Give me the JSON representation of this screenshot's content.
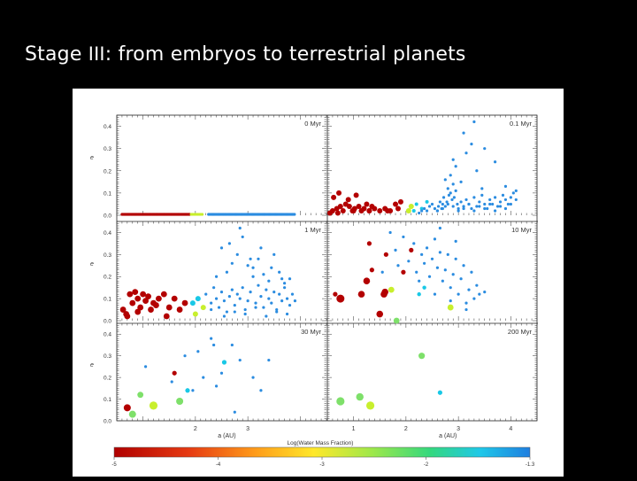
{
  "slide": {
    "title_pre": "Stage ",
    "title_roman": "III",
    "title_post": ": from embryos to terrestrial planets"
  },
  "chart_data": {
    "type": "scatter",
    "grid": false,
    "xlim": [
      0.5,
      4.5
    ],
    "ylim": [
      0.0,
      0.45
    ],
    "ytick_labels": [
      "0.0",
      "0.1",
      "0.2",
      "0.3",
      "0.4"
    ],
    "ytick_values": [
      0.0,
      0.1,
      0.2,
      0.3,
      0.4
    ],
    "xtick_labels": [
      "2",
      "3",
      "1",
      "2",
      "3",
      "4"
    ],
    "ylabel": "e",
    "xlabel_left": "a (AU)",
    "xlabel_right": "a (AU)",
    "colorbar_label": "Log(Water Mass Fraction)",
    "colorbar_ticks": [
      "-5",
      "-4",
      "-3",
      "-2",
      "-1.3"
    ],
    "colors": {
      "dry": "#b30000",
      "intermediate": "#c8ef2d",
      "light_green": "#7ee06a",
      "cyan": "#19c8e6",
      "wet": "#2b8ce0"
    },
    "panels": [
      {
        "label": "0 Myr",
        "row": 0,
        "col": 0,
        "series": [
          {
            "color": "dry",
            "kind": "line",
            "x_from": 0.6,
            "x_to": 1.9,
            "y": 0.0,
            "step": 0.015
          },
          {
            "color": "intermediate",
            "kind": "line",
            "x_from": 1.92,
            "x_to": 2.15,
            "y": 0.0,
            "step": 0.03
          },
          {
            "color": "wet",
            "kind": "line",
            "x_from": 2.25,
            "x_to": 3.9,
            "y": 0.0,
            "step": 0.02
          }
        ]
      },
      {
        "label": "0.1 Myr",
        "row": 0,
        "col": 1,
        "series": [
          {
            "color": "dry",
            "size": 3,
            "x": [
              0.55,
              0.6,
              0.62,
              0.68,
              0.72,
              0.75,
              0.8,
              0.85,
              0.9,
              0.92,
              0.98,
              1.02,
              1.05,
              1.1,
              1.15,
              1.2,
              1.25,
              1.3,
              1.35,
              1.4,
              1.5,
              1.6,
              1.7,
              1.8,
              1.9,
              0.7,
              1.0,
              1.3,
              1.65,
              1.85
            ],
            "y": [
              0.01,
              0.02,
              0.08,
              0.03,
              0.1,
              0.04,
              0.02,
              0.05,
              0.07,
              0.04,
              0.02,
              0.03,
              0.09,
              0.04,
              0.02,
              0.03,
              0.05,
              0.02,
              0.04,
              0.03,
              0.02,
              0.03,
              0.02,
              0.05,
              0.06,
              0.01,
              0.02,
              0.02,
              0.02,
              0.03
            ]
          },
          {
            "color": "intermediate",
            "size": 3,
            "x": [
              2.05,
              2.1
            ],
            "y": [
              0.02,
              0.04
            ]
          },
          {
            "color": "cyan",
            "size": 2,
            "x": [
              2.15,
              2.2,
              2.3,
              2.4
            ],
            "y": [
              0.02,
              0.05,
              0.03,
              0.06
            ]
          },
          {
            "color": "wet",
            "size": 1.6,
            "x": [
              2.25,
              2.3,
              2.35,
              2.4,
              2.45,
              2.5,
              2.55,
              2.6,
              2.62,
              2.65,
              2.68,
              2.7,
              2.72,
              2.75,
              2.78,
              2.8,
              2.82,
              2.85,
              2.88,
              2.9,
              2.92,
              2.95,
              2.98,
              3.0,
              3.05,
              3.1,
              3.15,
              3.2,
              3.25,
              3.3,
              3.35,
              3.4,
              3.45,
              3.5,
              3.55,
              3.6,
              3.65,
              3.7,
              3.75,
              3.8,
              3.85,
              3.9,
              3.95,
              4.0,
              4.05,
              4.1,
              2.6,
              2.7,
              2.8,
              2.9,
              3.0,
              3.1,
              3.2,
              3.3,
              3.4,
              3.5,
              3.6,
              3.7,
              3.8,
              3.9,
              4.0,
              2.85,
              2.95,
              3.05,
              3.15,
              3.25,
              3.35,
              3.45,
              2.75,
              2.9,
              3.1,
              3.3,
              3.5,
              3.7,
              3.9,
              4.1
            ],
            "y": [
              0.01,
              0.02,
              0.03,
              0.02,
              0.04,
              0.05,
              0.03,
              0.02,
              0.04,
              0.06,
              0.03,
              0.05,
              0.08,
              0.04,
              0.06,
              0.12,
              0.09,
              0.1,
              0.07,
              0.14,
              0.08,
              0.11,
              0.05,
              0.03,
              0.06,
              0.04,
              0.07,
              0.05,
              0.03,
              0.08,
              0.04,
              0.06,
              0.09,
              0.05,
              0.03,
              0.07,
              0.05,
              0.08,
              0.04,
              0.06,
              0.09,
              0.07,
              0.05,
              0.08,
              0.1,
              0.07,
              0.02,
              0.03,
              0.05,
              0.04,
              0.02,
              0.03,
              0.05,
              0.02,
              0.04,
              0.03,
              0.05,
              0.02,
              0.04,
              0.03,
              0.05,
              0.18,
              0.22,
              0.15,
              0.28,
              0.32,
              0.2,
              0.12,
              0.16,
              0.25,
              0.37,
              0.42,
              0.3,
              0.24,
              0.13,
              0.11
            ]
          }
        ]
      },
      {
        "label": "1 Myr",
        "row": 1,
        "col": 0,
        "series": [
          {
            "color": "dry",
            "size": 3.4,
            "x": [
              0.62,
              0.7,
              0.75,
              0.8,
              0.85,
              0.9,
              0.95,
              1.0,
              1.05,
              1.1,
              1.15,
              1.2,
              1.3,
              1.4,
              1.5,
              1.6,
              1.7,
              0.68,
              0.9,
              1.25,
              1.45,
              1.8
            ],
            "y": [
              0.05,
              0.02,
              0.12,
              0.08,
              0.13,
              0.1,
              0.06,
              0.12,
              0.09,
              0.11,
              0.05,
              0.08,
              0.1,
              0.12,
              0.06,
              0.1,
              0.05,
              0.03,
              0.04,
              0.07,
              0.02,
              0.08
            ]
          },
          {
            "color": "intermediate",
            "size": 3,
            "x": [
              2.0,
              2.15
            ],
            "y": [
              0.03,
              0.06
            ]
          },
          {
            "color": "cyan",
            "size": 3,
            "x": [
              1.95,
              2.05
            ],
            "y": [
              0.08,
              0.1
            ]
          },
          {
            "color": "wet",
            "size": 1.6,
            "x": [
              2.2,
              2.3,
              2.35,
              2.4,
              2.45,
              2.5,
              2.55,
              2.6,
              2.65,
              2.7,
              2.75,
              2.8,
              2.85,
              2.9,
              2.95,
              3.0,
              3.05,
              3.1,
              3.15,
              3.2,
              3.25,
              3.3,
              3.35,
              3.4,
              3.45,
              3.5,
              3.55,
              3.6,
              3.65,
              3.7,
              3.75,
              3.8,
              3.85,
              3.9,
              2.4,
              2.6,
              2.8,
              3.0,
              3.2,
              3.4,
              3.6,
              3.8,
              2.5,
              2.7,
              2.9,
              3.1,
              3.3,
              3.5,
              3.7,
              2.3,
              2.55,
              2.75,
              2.95,
              3.15,
              3.35,
              3.55,
              3.75,
              2.65,
              2.85,
              3.05,
              3.25,
              3.45,
              3.65
            ],
            "y": [
              0.12,
              0.08,
              0.15,
              0.1,
              0.06,
              0.13,
              0.09,
              0.04,
              0.11,
              0.14,
              0.07,
              0.12,
              0.1,
              0.15,
              0.05,
              0.09,
              0.13,
              0.2,
              0.08,
              0.16,
              0.11,
              0.06,
              0.14,
              0.1,
              0.08,
              0.13,
              0.05,
              0.12,
              0.09,
              0.15,
              0.1,
              0.07,
              0.12,
              0.09,
              0.2,
              0.22,
              0.3,
              0.25,
              0.28,
              0.18,
              0.22,
              0.19,
              0.33,
              0.26,
              0.38,
              0.24,
              0.21,
              0.3,
              0.17,
              0.05,
              0.02,
              0.04,
              0.03,
              0.06,
              0.02,
              0.04,
              0.03,
              0.35,
              0.42,
              0.28,
              0.33,
              0.24,
              0.19
            ]
          }
        ]
      },
      {
        "label": "10 Myr",
        "row": 1,
        "col": 1,
        "series": [
          {
            "color": "dry",
            "size": 4.5,
            "x": [
              0.75
            ],
            "y": [
              0.1
            ]
          },
          {
            "color": "dry",
            "size": 3.8,
            "x": [
              1.15,
              1.25,
              1.5,
              1.58,
              1.6
            ],
            "y": [
              0.12,
              0.18,
              0.03,
              0.12,
              0.13
            ]
          },
          {
            "color": "dry",
            "size": 2.6,
            "x": [
              0.65,
              1.3,
              1.35,
              1.95,
              2.1,
              1.62
            ],
            "y": [
              0.12,
              0.35,
              0.23,
              0.22,
              0.32,
              0.3
            ]
          },
          {
            "color": "intermediate",
            "size": 3.4,
            "x": [
              1.72,
              2.85
            ],
            "y": [
              0.14,
              0.06
            ]
          },
          {
            "color": "light_green",
            "size": 3.4,
            "x": [
              1.82
            ],
            "y": [
              0.0
            ]
          },
          {
            "color": "cyan",
            "size": 2.2,
            "x": [
              2.25,
              2.35
            ],
            "y": [
              0.12,
              0.15
            ]
          },
          {
            "color": "wet",
            "size": 1.6,
            "x": [
              1.7,
              1.8,
              1.95,
              2.05,
              2.15,
              2.2,
              2.3,
              2.35,
              2.4,
              2.45,
              2.5,
              2.55,
              2.6,
              2.65,
              2.7,
              2.75,
              2.8,
              2.85,
              2.9,
              2.95,
              3.0,
              3.05,
              3.1,
              3.15,
              3.2,
              3.25,
              3.3,
              3.35,
              3.4,
              3.5,
              1.55,
              1.85,
              2.25,
              2.55,
              2.85,
              3.15,
              2.65,
              2.95
            ],
            "y": [
              0.4,
              0.32,
              0.38,
              0.27,
              0.35,
              0.22,
              0.3,
              0.26,
              0.33,
              0.2,
              0.28,
              0.37,
              0.24,
              0.31,
              0.18,
              0.23,
              0.3,
              0.15,
              0.21,
              0.28,
              0.12,
              0.19,
              0.25,
              0.08,
              0.14,
              0.22,
              0.1,
              0.16,
              0.12,
              0.13,
              0.22,
              0.25,
              0.18,
              0.12,
              0.09,
              0.05,
              0.42,
              0.36
            ]
          }
        ]
      },
      {
        "label": "30 Myr",
        "row": 2,
        "col": 0,
        "series": [
          {
            "color": "dry",
            "size": 4,
            "x": [
              0.7
            ],
            "y": [
              0.06
            ]
          },
          {
            "color": "dry",
            "size": 2.6,
            "x": [
              1.6
            ],
            "y": [
              0.22
            ]
          },
          {
            "color": "intermediate",
            "size": 4.6,
            "x": [
              1.2
            ],
            "y": [
              0.07
            ]
          },
          {
            "color": "light_green",
            "size": 4,
            "x": [
              0.8,
              1.7
            ],
            "y": [
              0.03,
              0.09
            ]
          },
          {
            "color": "light_green",
            "size": 3.4,
            "x": [
              0.95
            ],
            "y": [
              0.12
            ]
          },
          {
            "color": "cyan",
            "size": 2.6,
            "x": [
              1.85,
              2.55
            ],
            "y": [
              0.14,
              0.27
            ]
          },
          {
            "color": "wet",
            "size": 1.6,
            "x": [
              1.05,
              1.55,
              1.8,
              1.95,
              2.05,
              2.15,
              2.3,
              2.4,
              2.5,
              2.7,
              2.85,
              3.1,
              3.25,
              3.4,
              2.75,
              2.35
            ],
            "y": [
              0.25,
              0.18,
              0.3,
              0.14,
              0.32,
              0.2,
              0.38,
              0.16,
              0.22,
              0.35,
              0.28,
              0.2,
              0.14,
              0.28,
              0.04,
              0.35
            ]
          }
        ]
      },
      {
        "label": "200 Myr",
        "row": 2,
        "col": 1,
        "series": [
          {
            "color": "light_green",
            "size": 4.6,
            "x": [
              0.75
            ],
            "y": [
              0.09
            ]
          },
          {
            "color": "light_green",
            "size": 4.2,
            "x": [
              1.12
            ],
            "y": [
              0.11
            ]
          },
          {
            "color": "intermediate",
            "size": 4.6,
            "x": [
              1.32
            ],
            "y": [
              0.07
            ]
          },
          {
            "color": "light_green",
            "size": 3.6,
            "x": [
              2.3
            ],
            "y": [
              0.3
            ]
          },
          {
            "color": "cyan",
            "size": 2.6,
            "x": [
              2.65
            ],
            "y": [
              0.13
            ]
          }
        ]
      }
    ]
  }
}
